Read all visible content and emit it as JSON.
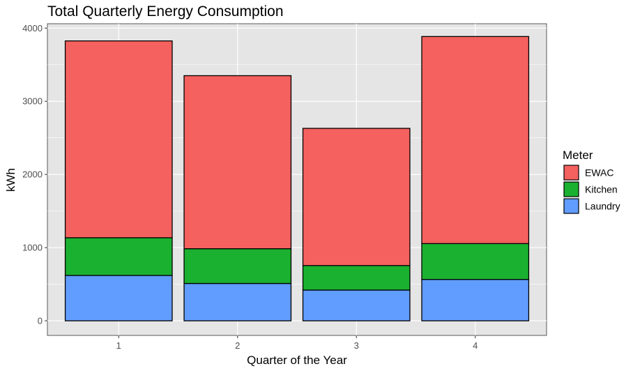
{
  "chart_data": {
    "type": "bar",
    "stacked": true,
    "title": "Total Quarterly Energy Consumption",
    "xlabel": "Quarter of the Year",
    "ylabel": "kWh",
    "categories": [
      "1",
      "2",
      "3",
      "4"
    ],
    "ylim": [
      -200,
      4060
    ],
    "yticks": [
      0,
      1000,
      2000,
      3000,
      4000
    ],
    "grid": true,
    "legend": {
      "title": "Meter",
      "position": "right"
    },
    "series": [
      {
        "name": "Laundry",
        "color": "#619CFF",
        "values": [
          620,
          510,
          420,
          565
        ]
      },
      {
        "name": "Kitchen",
        "color": "#1BB130",
        "values": [
          515,
          475,
          335,
          490
        ]
      },
      {
        "name": "EWAC",
        "color": "#F4615E",
        "values": [
          2690,
          2365,
          1875,
          2830
        ]
      }
    ],
    "legend_order": [
      "EWAC",
      "Kitchen",
      "Laundry"
    ],
    "panel_background": "#E5E5E5",
    "grid_color": "#FFFFFF"
  }
}
